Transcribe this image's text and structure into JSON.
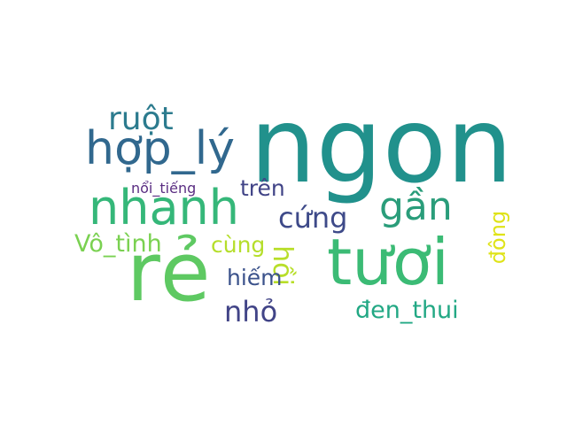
{
  "words": [
    {
      "id": "ngon",
      "text": "ngon",
      "color": "#21918c"
    },
    {
      "id": "re",
      "text": "rẻ",
      "color": "#5ec962"
    },
    {
      "id": "tuoi",
      "text": "tươi",
      "color": "#3bbb75"
    },
    {
      "id": "nhanh",
      "text": "nhanh",
      "color": "#35b779"
    },
    {
      "id": "hop-ly",
      "text": "hợp_lý",
      "color": "#31688e"
    },
    {
      "id": "gan",
      "text": "gần",
      "color": "#2a9d7a"
    },
    {
      "id": "ruot",
      "text": "ruột",
      "color": "#2c7b8e"
    },
    {
      "id": "cung-1",
      "text": "cứng",
      "color": "#3e4a89"
    },
    {
      "id": "tren",
      "text": "trên",
      "color": "#414487"
    },
    {
      "id": "noi-tieng",
      "text": "nổi_tiếng",
      "color": "#5a2d82"
    },
    {
      "id": "vo-tinh",
      "text": "Vô_tình",
      "color": "#7ad151"
    },
    {
      "id": "cung-2",
      "text": "cùng",
      "color": "#b5de2b"
    },
    {
      "id": "hoi",
      "text": "hồi",
      "color": "#b8de29"
    },
    {
      "id": "dong",
      "text": "đông",
      "color": "#dfe318"
    },
    {
      "id": "hiem",
      "text": "hiếm",
      "color": "#3b528b"
    },
    {
      "id": "nho",
      "text": "nhỏ",
      "color": "#414487"
    },
    {
      "id": "den-thui",
      "text": "đen_thui",
      "color": "#22a884"
    }
  ]
}
